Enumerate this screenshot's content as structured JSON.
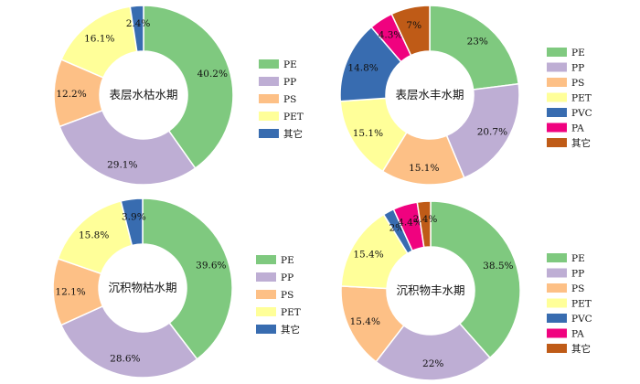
{
  "chart_data": [
    {
      "type": "pie",
      "donut": true,
      "title": "表层水枯水期",
      "categories": [
        "PE",
        "PP",
        "PS",
        "PET",
        "其它"
      ],
      "values": [
        40.2,
        29.1,
        12.2,
        16.1,
        2.4
      ],
      "labels": [
        "40.2%",
        "29.1%",
        "12.2%",
        "16.1%",
        "2.4%"
      ],
      "colors": [
        "#7fc97f",
        "#beaed4",
        "#fdc086",
        "#ffff99",
        "#386cb0"
      ],
      "legend_position": "right"
    },
    {
      "type": "pie",
      "donut": true,
      "title": "表层水丰水期",
      "categories": [
        "PE",
        "PP",
        "PS",
        "PET",
        "PVC",
        "PA",
        "其它"
      ],
      "values": [
        23,
        20.7,
        15.1,
        15.1,
        14.8,
        4.3,
        7
      ],
      "labels": [
        "23%",
        "20.7%",
        "15.1%",
        "15.1%",
        "14.8%",
        "4.3%",
        "7%"
      ],
      "colors": [
        "#7fc97f",
        "#beaed4",
        "#fdc086",
        "#ffff99",
        "#386cb0",
        "#f0027f",
        "#bf5b17"
      ],
      "legend_position": "right"
    },
    {
      "type": "pie",
      "donut": true,
      "title": "沉积物枯水期",
      "categories": [
        "PE",
        "PP",
        "PS",
        "PET",
        "其它"
      ],
      "values": [
        39.6,
        28.6,
        12.1,
        15.8,
        3.9
      ],
      "labels": [
        "39.6%",
        "28.6%",
        "12.1%",
        "15.8%",
        "3.9%"
      ],
      "colors": [
        "#7fc97f",
        "#beaed4",
        "#fdc086",
        "#ffff99",
        "#386cb0"
      ],
      "legend_position": "right"
    },
    {
      "type": "pie",
      "donut": true,
      "title": "沉积物丰水期",
      "categories": [
        "PE",
        "PP",
        "PS",
        "PET",
        "PVC",
        "PA",
        "其它"
      ],
      "values": [
        38.5,
        22,
        15.4,
        15.4,
        2,
        4.4,
        2.4
      ],
      "labels": [
        "38.5%",
        "22%",
        "15.4%",
        "15.4%",
        "2%",
        "4.4%",
        "2.4%"
      ],
      "colors": [
        "#7fc97f",
        "#beaed4",
        "#fdc086",
        "#ffff99",
        "#386cb0",
        "#f0027f",
        "#bf5b17"
      ],
      "legend_position": "right"
    }
  ]
}
